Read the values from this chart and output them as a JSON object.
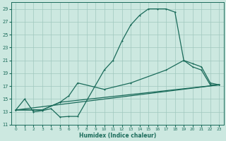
{
  "xlabel": "Humidex (Indice chaleur)",
  "xlim": [
    -0.5,
    23.5
  ],
  "ylim": [
    11,
    30
  ],
  "yticks": [
    11,
    13,
    15,
    17,
    19,
    21,
    23,
    25,
    27,
    29
  ],
  "xticks": [
    0,
    1,
    2,
    3,
    4,
    5,
    6,
    7,
    8,
    9,
    10,
    11,
    12,
    13,
    14,
    15,
    16,
    17,
    18,
    19,
    20,
    21,
    22,
    23
  ],
  "background_color": "#cce8e0",
  "grid_color": "#a0c8be",
  "line_color": "#1a6b5a",
  "line1_x": [
    0,
    1,
    2,
    3,
    4,
    5,
    6,
    7,
    10,
    11,
    12,
    13,
    14,
    15,
    16,
    17,
    18,
    19,
    20,
    21,
    22,
    23
  ],
  "line1_y": [
    13.3,
    15.0,
    13.0,
    13.2,
    13.5,
    12.2,
    12.3,
    12.3,
    19.5,
    21.0,
    24.0,
    26.5,
    28.0,
    29.0,
    29.0,
    29.0,
    28.5,
    21.0,
    20.0,
    19.5,
    17.2,
    17.2
  ],
  "line2_x": [
    0,
    2,
    3,
    5,
    6,
    7,
    10,
    13,
    17,
    19,
    20,
    21,
    22,
    23
  ],
  "line2_y": [
    13.3,
    13.3,
    13.3,
    14.5,
    15.5,
    17.5,
    16.5,
    17.5,
    19.5,
    21.0,
    20.5,
    20.0,
    17.5,
    17.2
  ],
  "line3_x": [
    0,
    2,
    3,
    5,
    23
  ],
  "line3_y": [
    13.3,
    13.3,
    13.3,
    14.5,
    17.2
  ],
  "line4_x": [
    0,
    23
  ],
  "line4_y": [
    13.3,
    17.2
  ]
}
